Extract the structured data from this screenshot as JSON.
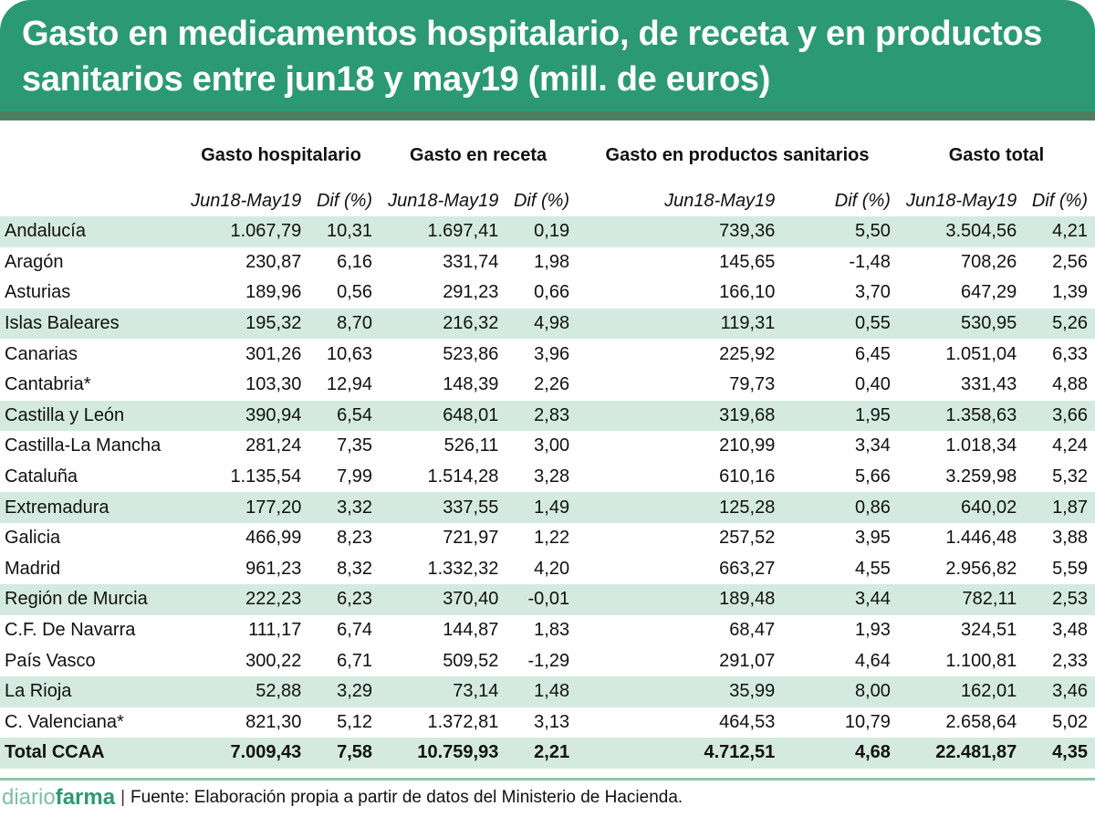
{
  "title": "Gasto en medicamentos hospitalario, de receta y en productos sanitarios entre jun18 y may19 (mill. de euros)",
  "columns": {
    "groups": [
      "Gasto hospitalario",
      "Gasto en receta",
      "Gasto en productos sanitarios",
      "Gasto total"
    ],
    "period": "Jun18-May19",
    "dif": "Dif (%)"
  },
  "rows": [
    [
      "Andalucía",
      "1.067,79",
      "10,31",
      "1.697,41",
      "0,19",
      "739,36",
      "5,50",
      "3.504,56",
      "4,21"
    ],
    [
      "Aragón",
      "230,87",
      "6,16",
      "331,74",
      "1,98",
      "145,65",
      "-1,48",
      "708,26",
      "2,56"
    ],
    [
      "Asturias",
      "189,96",
      "0,56",
      "291,23",
      "0,66",
      "166,10",
      "3,70",
      "647,29",
      "1,39"
    ],
    [
      "Islas Baleares",
      "195,32",
      "8,70",
      "216,32",
      "4,98",
      "119,31",
      "0,55",
      "530,95",
      "5,26"
    ],
    [
      "Canarias",
      "301,26",
      "10,63",
      "523,86",
      "3,96",
      "225,92",
      "6,45",
      "1.051,04",
      "6,33"
    ],
    [
      "Cantabria*",
      "103,30",
      "12,94",
      "148,39",
      "2,26",
      "79,73",
      "0,40",
      "331,43",
      "4,88"
    ],
    [
      "Castilla y León",
      "390,94",
      "6,54",
      "648,01",
      "2,83",
      "319,68",
      "1,95",
      "1.358,63",
      "3,66"
    ],
    [
      "Castilla-La Mancha",
      "281,24",
      "7,35",
      "526,11",
      "3,00",
      "210,99",
      "3,34",
      "1.018,34",
      "4,24"
    ],
    [
      "Cataluña",
      "1.135,54",
      "7,99",
      "1.514,28",
      "3,28",
      "610,16",
      "5,66",
      "3.259,98",
      "5,32"
    ],
    [
      "Extremadura",
      "177,20",
      "3,32",
      "337,55",
      "1,49",
      "125,28",
      "0,86",
      "640,02",
      "1,87"
    ],
    [
      "Galicia",
      "466,99",
      "8,23",
      "721,97",
      "1,22",
      "257,52",
      "3,95",
      "1.446,48",
      "3,88"
    ],
    [
      "Madrid",
      "961,23",
      "8,32",
      "1.332,32",
      "4,20",
      "663,27",
      "4,55",
      "2.956,82",
      "5,59"
    ],
    [
      "Región de Murcia",
      "222,23",
      "6,23",
      "370,40",
      "-0,01",
      "189,48",
      "3,44",
      "782,11",
      "2,53"
    ],
    [
      "C.F. De Navarra",
      "111,17",
      "6,74",
      "144,87",
      "1,83",
      "68,47",
      "1,93",
      "324,51",
      "3,48"
    ],
    [
      "País Vasco",
      "300,22",
      "6,71",
      "509,52",
      "-1,29",
      "291,07",
      "4,64",
      "1.100,81",
      "2,33"
    ],
    [
      "La Rioja",
      "52,88",
      "3,29",
      "73,14",
      "1,48",
      "35,99",
      "8,00",
      "162,01",
      "3,46"
    ],
    [
      "C. Valenciana*",
      "821,30",
      "5,12",
      "1.372,81",
      "3,13",
      "464,53",
      "10,79",
      "2.658,64",
      "5,02"
    ]
  ],
  "total": [
    "Total CCAA",
    "7.009,43",
    "7,58",
    "10.759,93",
    "2,21",
    "4.712,51",
    "4,68",
    "22.481,87",
    "4,35"
  ],
  "footer": {
    "logo_light": "diario",
    "logo_bold": "farma",
    "source": "Fuente: Elaboración propia a partir de datos del Ministerio de Hacienda."
  },
  "colors": {
    "header": "#2b9a74",
    "stripe": "#4e7d5e",
    "row_alt": "#d4eae0"
  }
}
